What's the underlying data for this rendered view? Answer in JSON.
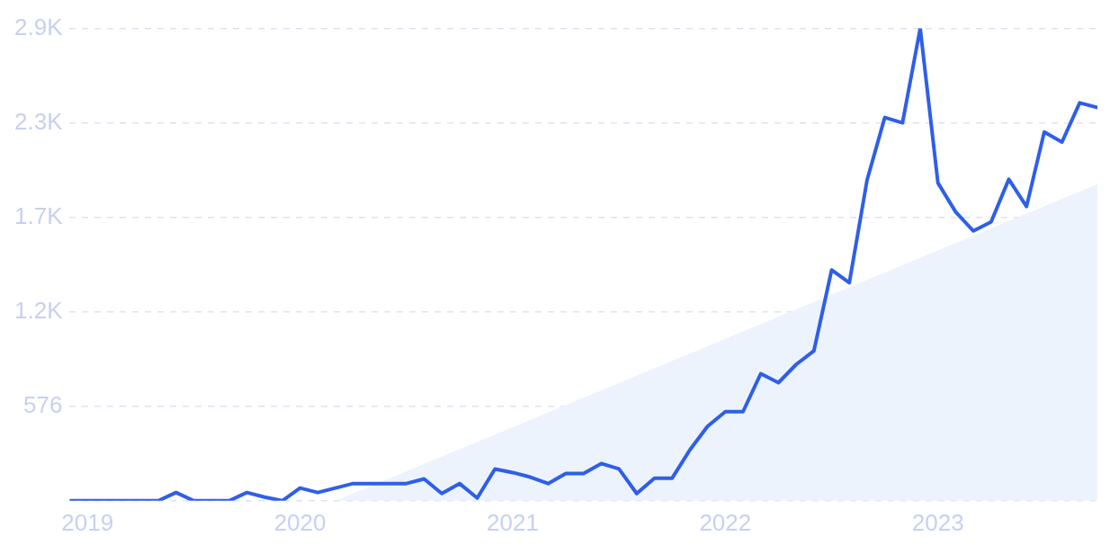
{
  "chart_data": {
    "type": "line",
    "xlim": [
      "2018-12",
      "2023-10"
    ],
    "xticks": [
      "2019",
      "2020",
      "2021",
      "2022",
      "2023"
    ],
    "ylim": [
      0,
      2880
    ],
    "yticks": [
      {
        "value": 0,
        "label": null
      },
      {
        "value": 576,
        "label": "576"
      },
      {
        "value": 1152,
        "label": "1.2K"
      },
      {
        "value": 1728,
        "label": "1.7K"
      },
      {
        "value": 2304,
        "label": "2.3K"
      },
      {
        "value": 2880,
        "label": "2.9K"
      }
    ],
    "grid": "y",
    "legend": false,
    "marker": "none",
    "line_style": "solid",
    "series": [
      {
        "type": "area",
        "color": "#edf3fc",
        "x": [
          "2020-03",
          "2023-10"
        ],
        "values": [
          0,
          1930
        ]
      },
      {
        "color": "#2f5fe8",
        "x": [
          "2018-12",
          "2019-01",
          "2019-02",
          "2019-03",
          "2019-04",
          "2019-05",
          "2019-06",
          "2019-07",
          "2019-08",
          "2019-09",
          "2019-10",
          "2019-11",
          "2019-12",
          "2020-01",
          "2020-02",
          "2020-03",
          "2020-04",
          "2020-05",
          "2020-06",
          "2020-07",
          "2020-08",
          "2020-09",
          "2020-10",
          "2020-11",
          "2020-12",
          "2021-01",
          "2021-02",
          "2021-03",
          "2021-04",
          "2021-05",
          "2021-06",
          "2021-07",
          "2021-08",
          "2021-09",
          "2021-10",
          "2021-11",
          "2021-12",
          "2022-01",
          "2022-02",
          "2022-03",
          "2022-04",
          "2022-05",
          "2022-06",
          "2022-07",
          "2022-08",
          "2022-09",
          "2022-10",
          "2022-11",
          "2022-12",
          "2023-01",
          "2023-02",
          "2023-03",
          "2023-04",
          "2023-05",
          "2023-06",
          "2023-07",
          "2023-08",
          "2023-09",
          "2023-10"
        ],
        "values": [
          0,
          0,
          0,
          0,
          0,
          0,
          50,
          0,
          0,
          0,
          50,
          22,
          0,
          78,
          50,
          78,
          105,
          105,
          105,
          105,
          133,
          44,
          105,
          17,
          194,
          172,
          144,
          105,
          166,
          166,
          227,
          194,
          44,
          138,
          138,
          310,
          454,
          543,
          543,
          775,
          720,
          831,
          914,
          1407,
          1329,
          1955,
          2337,
          2304,
          2880,
          1938,
          1761,
          1645,
          1700,
          1960,
          1794,
          2248,
          2187,
          2426,
          2398
        ]
      }
    ]
  }
}
